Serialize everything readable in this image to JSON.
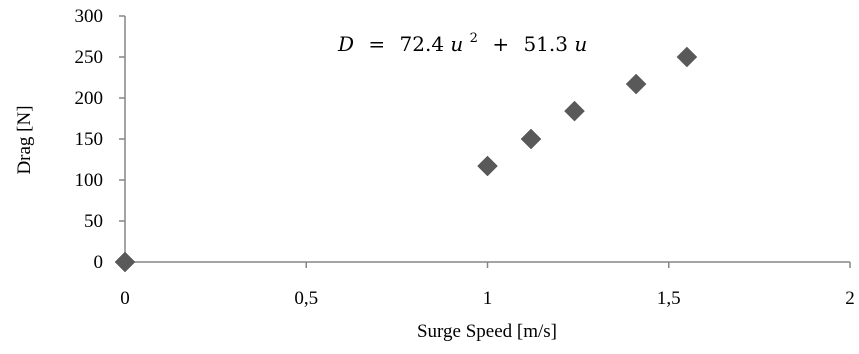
{
  "chart_data": {
    "type": "scatter",
    "title": "",
    "xlabel": "Surge Speed [m/s]",
    "ylabel": "Drag [N]",
    "xlim": [
      0,
      2
    ],
    "ylim": [
      0,
      300
    ],
    "xticks": [
      0,
      0.5,
      1,
      1.5,
      2
    ],
    "xtick_labels": [
      "0",
      "0,5",
      "1",
      "1,5",
      "2"
    ],
    "yticks": [
      0,
      50,
      100,
      150,
      200,
      250,
      300
    ],
    "ytick_labels": [
      "0",
      "50",
      "100",
      "150",
      "200",
      "250",
      "300"
    ],
    "grid": false,
    "legend": "none",
    "marker": "diamond",
    "marker_color": "#595959",
    "axis_color": "#868686",
    "annotation": {
      "lhs": "D",
      "equals": "=",
      "coef1": "72.4",
      "var1": "u",
      "exp1": "2",
      "plus": "+",
      "coef2": "51.3",
      "var2": "u"
    },
    "points": [
      {
        "x": 0,
        "y": 0
      },
      {
        "x": 1.0,
        "y": 117
      },
      {
        "x": 1.12,
        "y": 150
      },
      {
        "x": 1.24,
        "y": 184
      },
      {
        "x": 1.41,
        "y": 217
      },
      {
        "x": 1.55,
        "y": 250
      }
    ]
  }
}
